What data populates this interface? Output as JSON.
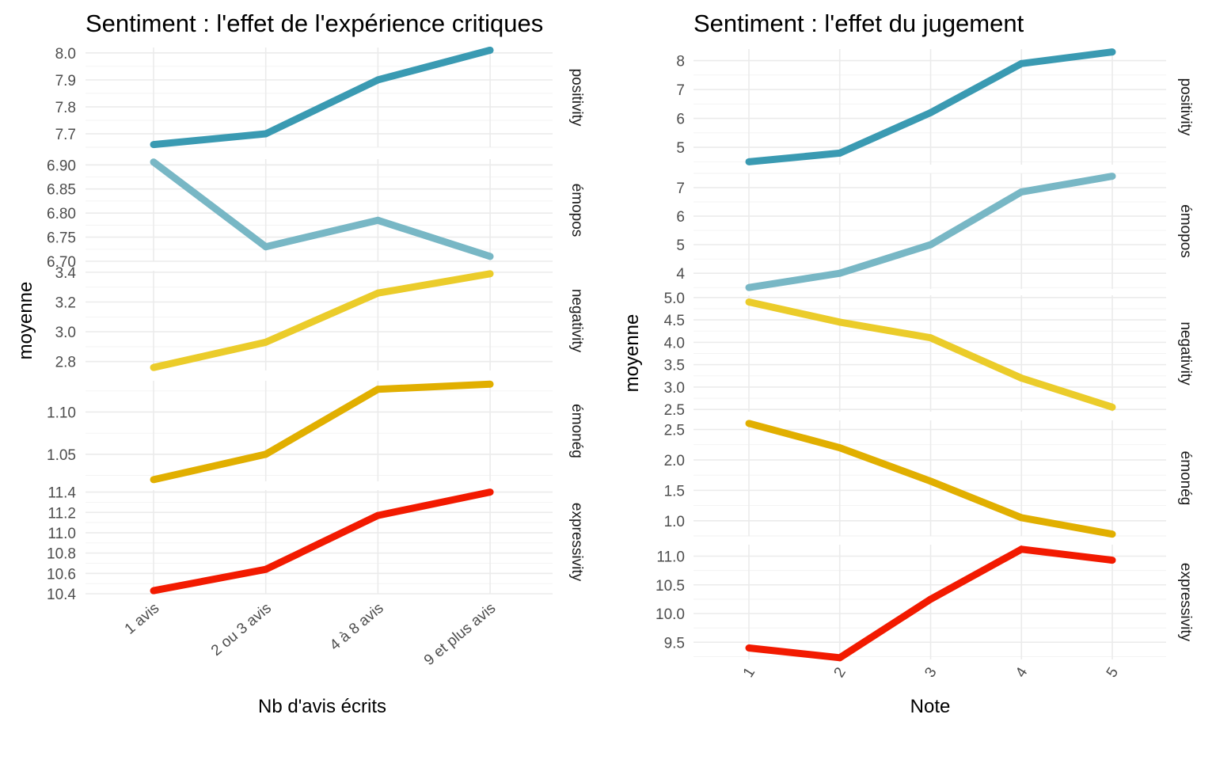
{
  "colors": {
    "positivity": "#3A9AB2",
    "emopos": "#78B7C5",
    "negativity": "#EBCC2A",
    "emoneg": "#E1AF00",
    "expressivity": "#F21A00"
  },
  "chart_data": [
    {
      "type": "line",
      "title": "Sentiment : l'effet de l'expérience critiques",
      "xlabel": "Nb d'avis écrits",
      "ylabel": "moyenne",
      "categories": [
        "1 avis",
        "2 ou 3 avis",
        "4 à 8 avis",
        "9 et plus avis"
      ],
      "grid": true,
      "facets": [
        {
          "name": "positivity",
          "values": [
            7.66,
            7.7,
            7.9,
            8.01
          ],
          "ylim": [
            7.65,
            8.02
          ],
          "ticks": [
            7.7,
            7.8,
            7.9,
            8.0
          ],
          "tick_labels": [
            "7.7",
            "7.8",
            "7.9",
            "8.0"
          ]
        },
        {
          "name": "émopos",
          "values": [
            6.906,
            6.73,
            6.785,
            6.71
          ],
          "ylim": [
            6.7,
            6.912
          ],
          "ticks": [
            6.7,
            6.75,
            6.8,
            6.85,
            6.9
          ],
          "tick_labels": [
            "6.70",
            "6.75",
            "6.80",
            "6.85",
            "6.90"
          ]
        },
        {
          "name": "negativity",
          "values": [
            2.76,
            2.93,
            3.26,
            3.39
          ],
          "ylim": [
            2.74,
            3.41
          ],
          "ticks": [
            2.8,
            3.0,
            3.2,
            3.4
          ],
          "tick_labels": [
            "2.8",
            "3.0",
            "3.2",
            "3.4"
          ]
        },
        {
          "name": "émonég",
          "values": [
            1.02,
            1.05,
            1.127,
            1.133
          ],
          "ylim": [
            1.018,
            1.137
          ],
          "ticks": [
            1.05,
            1.1
          ],
          "tick_labels": [
            "1.05",
            "1.10"
          ]
        },
        {
          "name": "expressivity",
          "values": [
            10.43,
            10.64,
            11.17,
            11.4
          ],
          "ylim": [
            10.4,
            11.42
          ],
          "ticks": [
            10.4,
            10.6,
            10.8,
            11.0,
            11.2,
            11.4
          ],
          "tick_labels": [
            "10.4",
            "10.6",
            "10.8",
            "11.0",
            "11.2",
            "11.4"
          ]
        }
      ]
    },
    {
      "type": "line",
      "title": "Sentiment : l'effet du jugement",
      "xlabel": "Note",
      "ylabel": "moyenne",
      "categories": [
        "1",
        "2",
        "3",
        "4",
        "5"
      ],
      "grid": true,
      "facets": [
        {
          "name": "positivity",
          "values": [
            4.5,
            4.8,
            6.2,
            7.9,
            8.3
          ],
          "ylim": [
            4.4,
            8.4
          ],
          "ticks": [
            5,
            6,
            7,
            8
          ],
          "tick_labels": [
            "5",
            "6",
            "7",
            "8"
          ]
        },
        {
          "name": "émopos",
          "values": [
            3.5,
            4.0,
            5.0,
            6.85,
            7.4
          ],
          "ylim": [
            3.45,
            7.5
          ],
          "ticks": [
            4,
            5,
            6,
            7
          ],
          "tick_labels": [
            "4",
            "5",
            "6",
            "7"
          ]
        },
        {
          "name": "negativity",
          "values": [
            4.9,
            4.45,
            4.1,
            3.2,
            2.55
          ],
          "ylim": [
            2.45,
            5.05
          ],
          "ticks": [
            2.5,
            3.0,
            3.5,
            4.0,
            4.5,
            5.0
          ],
          "tick_labels": [
            "2.5",
            "3.0",
            "3.5",
            "4.0",
            "4.5",
            "5.0"
          ]
        },
        {
          "name": "émonég",
          "values": [
            2.6,
            2.2,
            1.65,
            1.05,
            0.78
          ],
          "ylim": [
            0.75,
            2.65
          ],
          "ticks": [
            1.0,
            1.5,
            2.0,
            2.5
          ],
          "tick_labels": [
            "1.0",
            "1.5",
            "2.0",
            "2.5"
          ]
        },
        {
          "name": "expressivity",
          "values": [
            9.4,
            9.23,
            10.25,
            11.12,
            10.93
          ],
          "ylim": [
            9.2,
            11.2
          ],
          "ticks": [
            9.5,
            10.0,
            10.5,
            11.0
          ],
          "tick_labels": [
            "9.5",
            "10.0",
            "10.5",
            "11.0"
          ]
        }
      ]
    }
  ]
}
